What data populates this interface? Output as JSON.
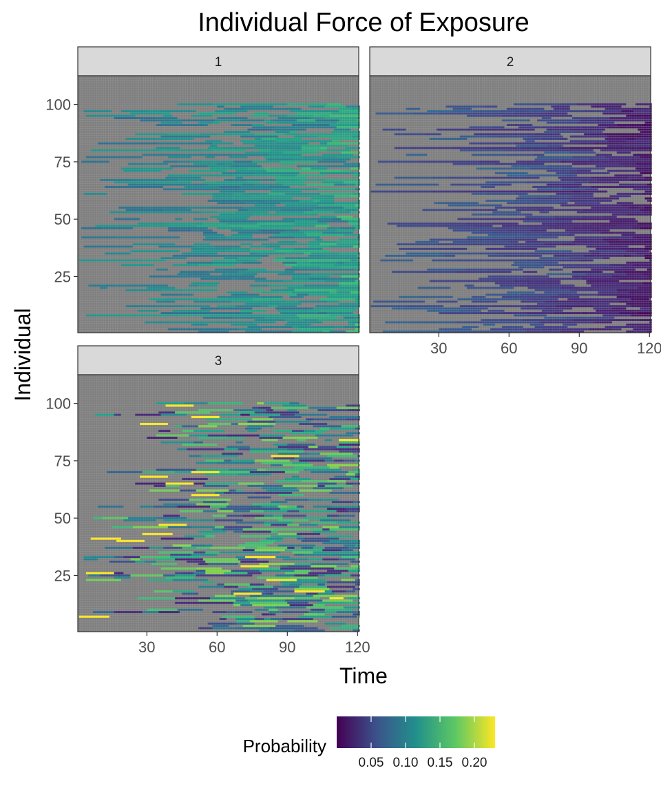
{
  "chart_data": {
    "type": "heatmap",
    "title": "Individual Force of Exposure",
    "xlabel": "Time",
    "ylabel": "Individual",
    "xlim": [
      1,
      120
    ],
    "ylim": [
      1,
      100
    ],
    "x_ticks": [
      30,
      60,
      90,
      120
    ],
    "y_ticks": [
      25,
      50,
      75,
      100
    ],
    "facets": [
      "1",
      "2",
      "3"
    ],
    "missing_color": "#7f7f7f",
    "grid": true,
    "legend": {
      "title": "Probability",
      "position": "bottom",
      "ticks": [
        "0.05",
        "0.10",
        "0.15",
        "0.20"
      ],
      "tick_values": [
        0.05,
        0.1,
        0.15,
        0.2
      ],
      "range": [
        0.0,
        0.23
      ],
      "colormap": "viridis",
      "colors": [
        "#440154",
        "#3b528b",
        "#21908c",
        "#5dc863",
        "#fde725"
      ]
    },
    "series": [
      {
        "facet": "1",
        "value_range": [
          0.06,
          0.17
        ],
        "start_spread": 75,
        "value_ramp": "rising",
        "missing_fraction": 0.25,
        "highlight_segments": []
      },
      {
        "facet": "2",
        "value_range": [
          0.0,
          0.08
        ],
        "start_spread": 75,
        "value_ramp": "falling",
        "missing_fraction": 0.22,
        "highlight_segments": []
      },
      {
        "facet": "3",
        "value_range": [
          0.02,
          0.19
        ],
        "start_spread": 85,
        "value_ramp": "mixed",
        "missing_fraction": 0.35,
        "highlight_segments": [
          {
            "individual": 99,
            "start": 38,
            "end": 49,
            "value": 0.23
          },
          {
            "individual": 94,
            "start": 49,
            "end": 60,
            "value": 0.23
          },
          {
            "individual": 91,
            "start": 27,
            "end": 38,
            "value": 0.23
          },
          {
            "individual": 84,
            "start": 112,
            "end": 120,
            "value": 0.23
          },
          {
            "individual": 77,
            "start": 83,
            "end": 94,
            "value": 0.23
          },
          {
            "individual": 70,
            "start": 49,
            "end": 60,
            "value": 0.23
          },
          {
            "individual": 68,
            "start": 27,
            "end": 38,
            "value": 0.23
          },
          {
            "individual": 65,
            "start": 38,
            "end": 49,
            "value": 0.23
          },
          {
            "individual": 60,
            "start": 49,
            "end": 60,
            "value": 0.23
          },
          {
            "individual": 47,
            "start": 35,
            "end": 46,
            "value": 0.23
          },
          {
            "individual": 43,
            "start": 28,
            "end": 40,
            "value": 0.23
          },
          {
            "individual": 41,
            "start": 6,
            "end": 18,
            "value": 0.23
          },
          {
            "individual": 40,
            "start": 17,
            "end": 28,
            "value": 0.23
          },
          {
            "individual": 33,
            "start": 72,
            "end": 84,
            "value": 0.23
          },
          {
            "individual": 29,
            "start": 70,
            "end": 81,
            "value": 0.23
          },
          {
            "individual": 26,
            "start": 4,
            "end": 15,
            "value": 0.23
          },
          {
            "individual": 23,
            "start": 81,
            "end": 93,
            "value": 0.23
          },
          {
            "individual": 18,
            "start": 93,
            "end": 105,
            "value": 0.23
          },
          {
            "individual": 17,
            "start": 67,
            "end": 78,
            "value": 0.23
          },
          {
            "individual": 15,
            "start": 108,
            "end": 113,
            "value": 0.23
          },
          {
            "individual": 7,
            "start": 1,
            "end": 13,
            "value": 0.23
          }
        ]
      }
    ]
  }
}
